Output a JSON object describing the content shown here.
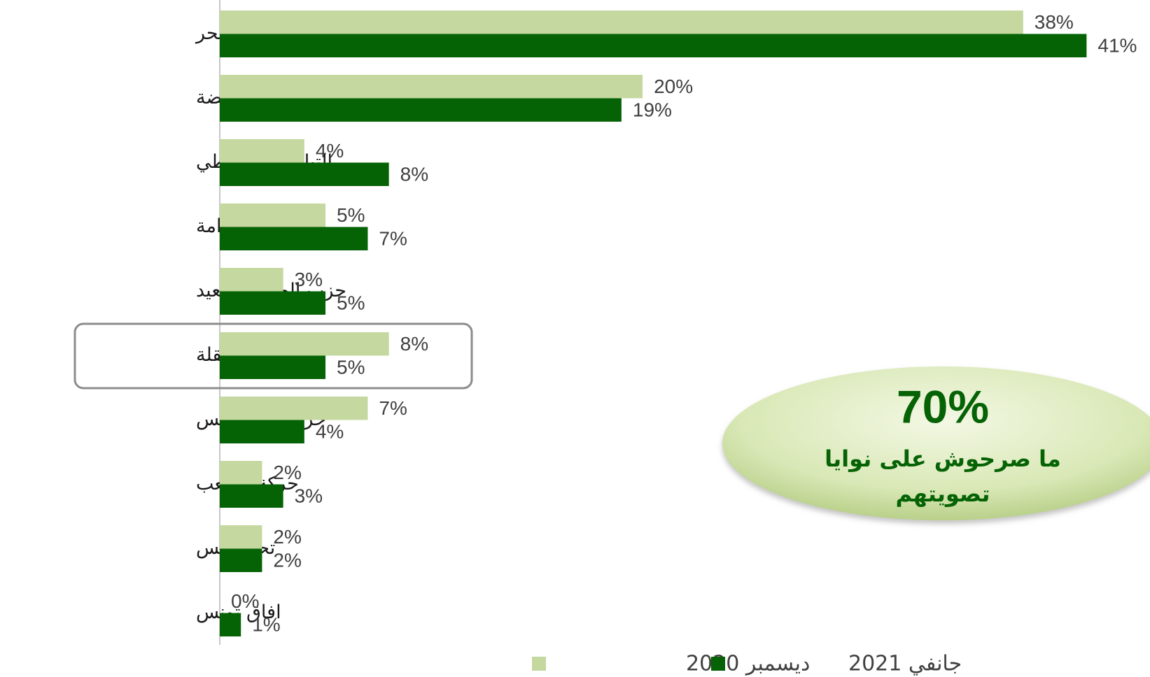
{
  "chart_data": {
    "type": "bar",
    "orientation": "horizontal",
    "categories": [
      "الحزب الدستوري الحر",
      "حركة النهضة",
      "التيار الديمقراطي",
      "إئتلاف الكرامة",
      "حزب الصافي سعيد",
      "قائمة مستقلة",
      "حزب قلب تونس",
      "حركة الشعب",
      "تحيا تونس",
      "افاق تونس"
    ],
    "series": [
      {
        "name": "ديسمبر 2020",
        "color": "#c4d89f",
        "values": [
          38,
          20,
          4,
          5,
          3,
          8,
          7,
          2,
          2,
          0
        ],
        "value_labels": [
          "38%",
          "20%",
          "4%",
          "5%",
          "3%",
          "8%",
          "7%",
          "2%",
          "2%",
          "0%"
        ]
      },
      {
        "name": "جانفي 2021",
        "color": "#056305",
        "values": [
          41,
          19,
          8,
          7,
          5,
          5,
          4,
          3,
          2,
          1
        ],
        "value_labels": [
          "41%",
          "19%",
          "8%",
          "7%",
          "5%",
          "5%",
          "4%",
          "3%",
          "2%",
          "1%"
        ]
      }
    ],
    "xlim": [
      0,
      44
    ],
    "highlight": 5,
    "annotation": {
      "headline": "70%",
      "lines": [
        "ما صرحوش على نوايا",
        "تصويتهم"
      ]
    }
  }
}
